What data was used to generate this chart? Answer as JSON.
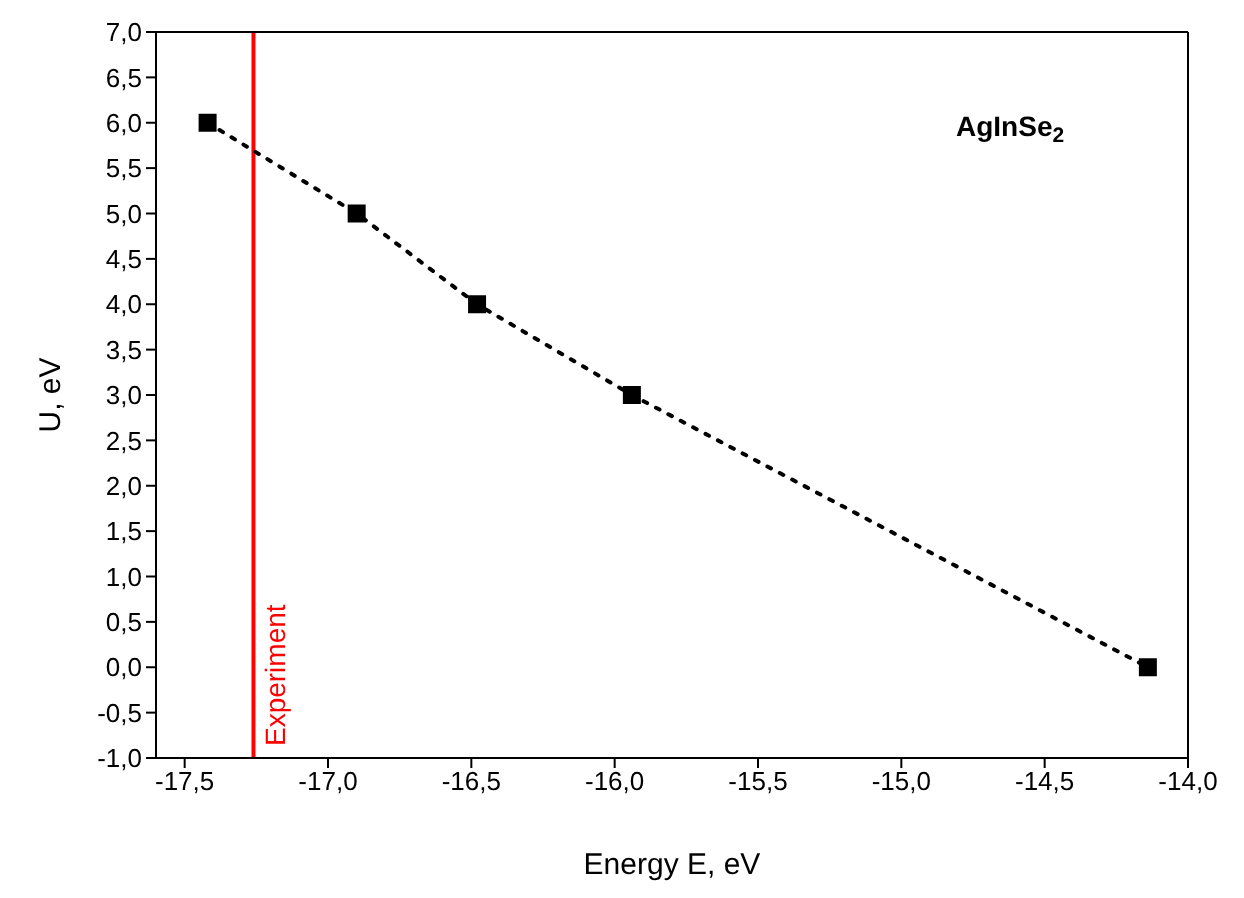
{
  "chart_data": {
    "type": "line",
    "xlabel": "Energy E, eV",
    "ylabel": "U, eV",
    "annotations": [
      "AgInSe$_{2}$"
    ],
    "series": [
      {
        "color": "#000000",
        "x": [
          -17.42,
          -16.9,
          -16.48,
          -15.94,
          -14.14
        ],
        "values": [
          6,
          5,
          4,
          3,
          0
        ]
      }
    ],
    "marker": "square",
    "line_style": "dotted",
    "xlim": [
      -17.6,
      -14.0
    ],
    "xticks": [
      {
        "value": -17.5,
        "label": "-17,5"
      },
      {
        "value": -17,
        "label": "-17,0"
      },
      {
        "value": -16.5,
        "label": "-16,5"
      },
      {
        "value": -16,
        "label": "-16,0"
      },
      {
        "value": -15.5,
        "label": "-15,5"
      },
      {
        "value": -15,
        "label": "-15,0"
      },
      {
        "value": -14.5,
        "label": "-14,5"
      },
      {
        "value": -14,
        "label": "-14,0"
      }
    ],
    "ylim": [
      -1,
      7
    ],
    "yticks": [
      {
        "value": -1,
        "label": "-1,0"
      },
      {
        "value": -0.5,
        "label": "-0,5"
      },
      {
        "value": 0,
        "label": "0,0"
      },
      {
        "value": 0.5,
        "label": "0,5"
      },
      {
        "value": 1,
        "label": "1,0"
      },
      {
        "value": 1.5,
        "label": "1,5"
      },
      {
        "value": 2,
        "label": "2,0"
      },
      {
        "value": 2.5,
        "label": "2,5"
      },
      {
        "value": 3,
        "label": "3,0"
      },
      {
        "value": 3.5,
        "label": "3,5"
      },
      {
        "value": 4,
        "label": "4,0"
      },
      {
        "value": 4.5,
        "label": "4,5"
      },
      {
        "value": 5,
        "label": "5,0"
      },
      {
        "value": 5.5,
        "label": "5,5"
      },
      {
        "value": 6,
        "label": "6,0"
      },
      {
        "value": 6.5,
        "label": "6,5"
      },
      {
        "value": 7,
        "label": "7,0"
      }
    ],
    "ref_lines": [
      {
        "axis": "x",
        "value": -17.26,
        "label": "Experiment",
        "color": "#ff0000"
      }
    ],
    "legend": false
  }
}
